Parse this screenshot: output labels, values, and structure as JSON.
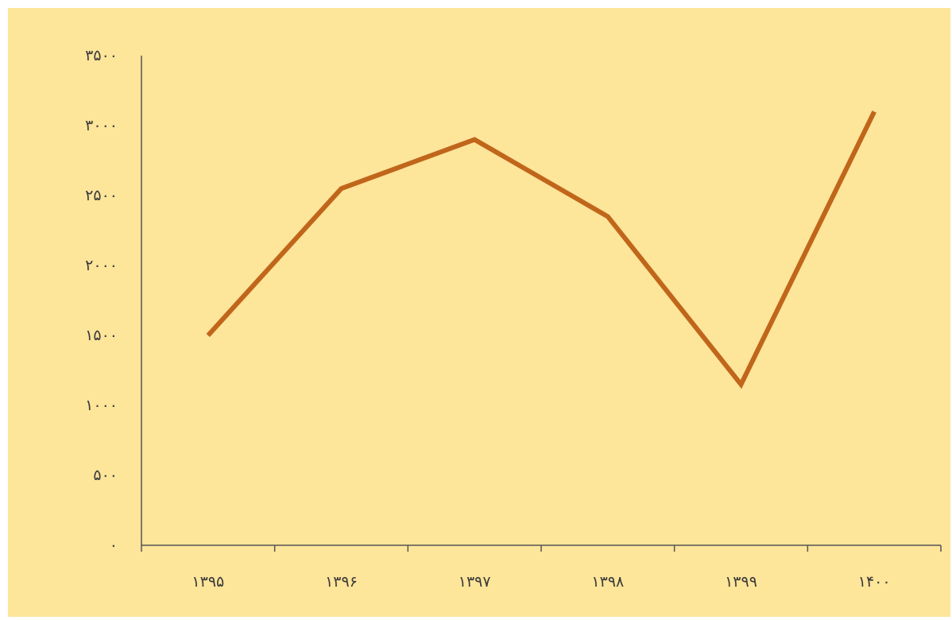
{
  "chart_data": {
    "type": "line",
    "title": "",
    "xlabel": "",
    "ylabel": "",
    "categories": [
      "۱۳۹۵",
      "۱۳۹۶",
      "۱۳۹۷",
      "۱۳۹۸",
      "۱۳۹۹",
      "۱۴۰۰"
    ],
    "series": [
      {
        "values": [
          1500,
          2550,
          2900,
          2350,
          1150,
          3100
        ]
      }
    ],
    "ylim": [
      0,
      3500
    ],
    "yticks": [
      0,
      500,
      1000,
      1500,
      2000,
      2500,
      3000,
      3500
    ],
    "ytick_labels": [
      "۰",
      "۵۰۰",
      "۱۰۰۰",
      "۱۵۰۰",
      "۲۰۰۰",
      "۲۵۰۰",
      "۳۰۰۰",
      "۳۵۰۰"
    ],
    "grid": false,
    "legend": "none"
  },
  "colors": {
    "background": "#fde59a",
    "line": "#c0661b",
    "axis": "#555555"
  }
}
